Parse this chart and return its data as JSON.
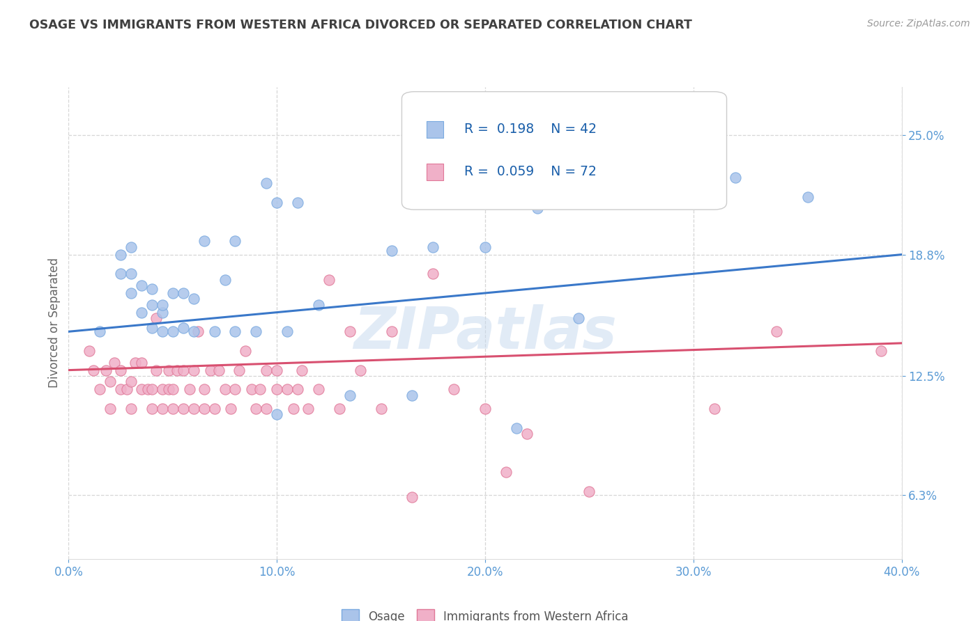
{
  "title": "OSAGE VS IMMIGRANTS FROM WESTERN AFRICA DIVORCED OR SEPARATED CORRELATION CHART",
  "source_text": "Source: ZipAtlas.com",
  "ylabel": "Divorced or Separated",
  "watermark": "ZIPatlas",
  "legend_label1": "Osage",
  "legend_label2": "Immigrants from Western Africa",
  "R1": 0.198,
  "N1": 42,
  "R2": 0.059,
  "N2": 72,
  "color1": "#aac4ea",
  "color1_edge": "#7aaae0",
  "color2": "#f0b0c8",
  "color2_edge": "#e07898",
  "trend1_color": "#3a78c9",
  "trend2_color": "#d85070",
  "xlim": [
    0.0,
    0.4
  ],
  "ylim": [
    0.03,
    0.275
  ],
  "yticks": [
    0.063,
    0.125,
    0.188,
    0.25
  ],
  "ytick_labels": [
    "6.3%",
    "12.5%",
    "18.8%",
    "25.0%"
  ],
  "xticks": [
    0.0,
    0.1,
    0.2,
    0.3,
    0.4
  ],
  "xtick_labels": [
    "0.0%",
    "10.0%",
    "20.0%",
    "30.0%",
    "40.0%"
  ],
  "background_color": "#ffffff",
  "grid_color": "#cccccc",
  "title_color": "#404040",
  "axis_tick_color": "#5b9bd5",
  "scatter1_x": [
    0.015,
    0.025,
    0.025,
    0.03,
    0.03,
    0.03,
    0.035,
    0.035,
    0.04,
    0.04,
    0.04,
    0.045,
    0.045,
    0.045,
    0.05,
    0.05,
    0.055,
    0.055,
    0.06,
    0.06,
    0.065,
    0.07,
    0.075,
    0.08,
    0.08,
    0.09,
    0.095,
    0.1,
    0.1,
    0.105,
    0.11,
    0.12,
    0.135,
    0.155,
    0.165,
    0.175,
    0.2,
    0.215,
    0.225,
    0.245,
    0.32,
    0.355
  ],
  "scatter1_y": [
    0.148,
    0.178,
    0.188,
    0.168,
    0.178,
    0.192,
    0.158,
    0.172,
    0.15,
    0.162,
    0.17,
    0.148,
    0.158,
    0.162,
    0.148,
    0.168,
    0.15,
    0.168,
    0.148,
    0.165,
    0.195,
    0.148,
    0.175,
    0.148,
    0.195,
    0.148,
    0.225,
    0.105,
    0.215,
    0.148,
    0.215,
    0.162,
    0.115,
    0.19,
    0.115,
    0.192,
    0.192,
    0.098,
    0.212,
    0.155,
    0.228,
    0.218
  ],
  "scatter2_x": [
    0.01,
    0.012,
    0.015,
    0.018,
    0.02,
    0.02,
    0.022,
    0.025,
    0.025,
    0.028,
    0.03,
    0.03,
    0.032,
    0.035,
    0.035,
    0.038,
    0.04,
    0.04,
    0.042,
    0.042,
    0.045,
    0.045,
    0.048,
    0.048,
    0.05,
    0.05,
    0.052,
    0.055,
    0.055,
    0.058,
    0.06,
    0.06,
    0.062,
    0.065,
    0.065,
    0.068,
    0.07,
    0.072,
    0.075,
    0.078,
    0.08,
    0.082,
    0.085,
    0.088,
    0.09,
    0.092,
    0.095,
    0.095,
    0.1,
    0.1,
    0.105,
    0.108,
    0.11,
    0.112,
    0.115,
    0.12,
    0.125,
    0.13,
    0.135,
    0.14,
    0.15,
    0.155,
    0.165,
    0.175,
    0.185,
    0.2,
    0.21,
    0.22,
    0.25,
    0.31,
    0.34,
    0.39
  ],
  "scatter2_y": [
    0.138,
    0.128,
    0.118,
    0.128,
    0.108,
    0.122,
    0.132,
    0.118,
    0.128,
    0.118,
    0.108,
    0.122,
    0.132,
    0.118,
    0.132,
    0.118,
    0.108,
    0.118,
    0.128,
    0.155,
    0.108,
    0.118,
    0.128,
    0.118,
    0.108,
    0.118,
    0.128,
    0.108,
    0.128,
    0.118,
    0.108,
    0.128,
    0.148,
    0.108,
    0.118,
    0.128,
    0.108,
    0.128,
    0.118,
    0.108,
    0.118,
    0.128,
    0.138,
    0.118,
    0.108,
    0.118,
    0.108,
    0.128,
    0.118,
    0.128,
    0.118,
    0.108,
    0.118,
    0.128,
    0.108,
    0.118,
    0.175,
    0.108,
    0.148,
    0.128,
    0.108,
    0.148,
    0.062,
    0.178,
    0.118,
    0.108,
    0.075,
    0.095,
    0.065,
    0.108,
    0.148,
    0.138
  ],
  "trend1_start_y": 0.148,
  "trend1_end_y": 0.188,
  "trend2_start_y": 0.128,
  "trend2_end_y": 0.142
}
